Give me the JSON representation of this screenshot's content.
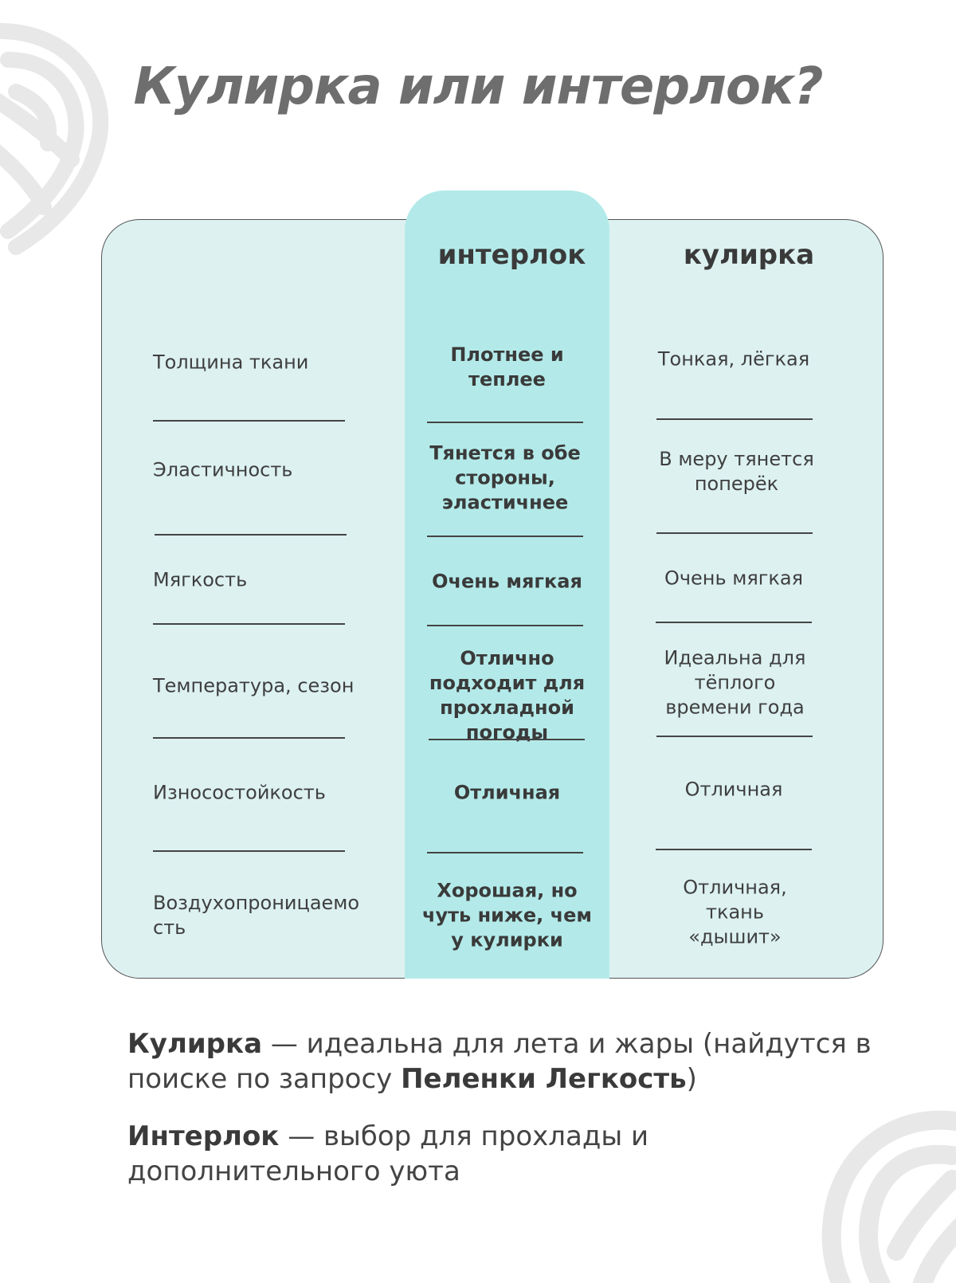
{
  "title": "Кулирка или интерлок?",
  "table": {
    "headers": {
      "interlock": "интерлок",
      "kulirka": "кулирка"
    },
    "rows": [
      {
        "label": "Толщина ткани",
        "interlock": "Плотнее и теплее",
        "kulirka": "Тонкая, лёгкая"
      },
      {
        "label": "Эластичность",
        "interlock": "Тянется в обе стороны, эластичнее",
        "kulirka": "В меру тянется поперёк"
      },
      {
        "label": "Мягкость",
        "interlock": "Очень мягкая",
        "kulirka": "Очень мягкая"
      },
      {
        "label": "Температура, сезон",
        "interlock": "Отлично подходит для прохладной погоды",
        "kulirka": "Идеальна для тёплого времени года"
      },
      {
        "label": "Износостойкость",
        "interlock": "Отличная",
        "kulirka": "Отличная"
      },
      {
        "label": "Воздухопроницаемость",
        "interlock": "Хорошая, но чуть ниже, чем у кулирки",
        "kulirka": "Отличная, ткань «дышит»"
      }
    ]
  },
  "footer": {
    "p1": {
      "bold": "Кулирка",
      "text1": " — идеальна для лета и жары (найдутся в поиске по запросу ",
      "query": "Пеленки Легкость",
      "text2": ")"
    },
    "p2": {
      "bold": "Интерлок",
      "text": " — выбор для прохлады и дополнительного уюта"
    }
  },
  "colors": {
    "table_bg": "#ddf1f1",
    "highlight_column": "#b3eae9",
    "decor": "#e8e8e8"
  },
  "icons": [
    "yarn-ball-icon"
  ]
}
